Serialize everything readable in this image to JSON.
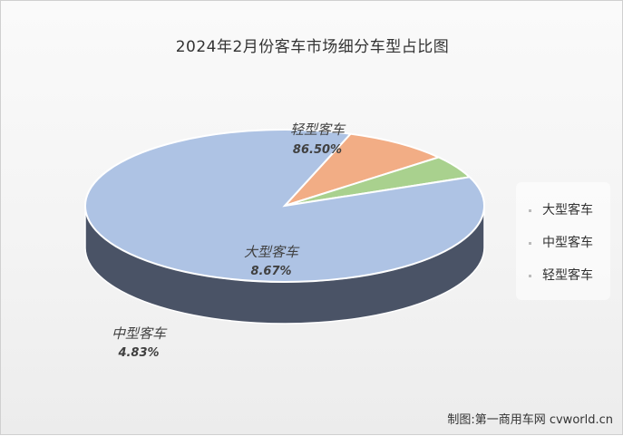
{
  "chart_data": {
    "type": "pie",
    "title": "2024年2月份客车市场细分车型占比图",
    "categories": [
      "大型客车",
      "中型客车",
      "轻型客车"
    ],
    "values": [
      8.67,
      4.83,
      86.5
    ],
    "value_labels": [
      "8.67%",
      "4.83%",
      "86.50%"
    ],
    "colors": [
      "#f2ad85",
      "#a9d18e",
      "#aec3e4"
    ],
    "side_colors": [
      "#8a5a3c",
      "#6b8a55",
      "#4a5366"
    ],
    "legend": {
      "placement": "right",
      "entries": [
        "大型客车",
        "中型客车",
        "轻型客车"
      ]
    },
    "style": "3d"
  },
  "source": "制图:第一商用车网 cvworld.cn"
}
